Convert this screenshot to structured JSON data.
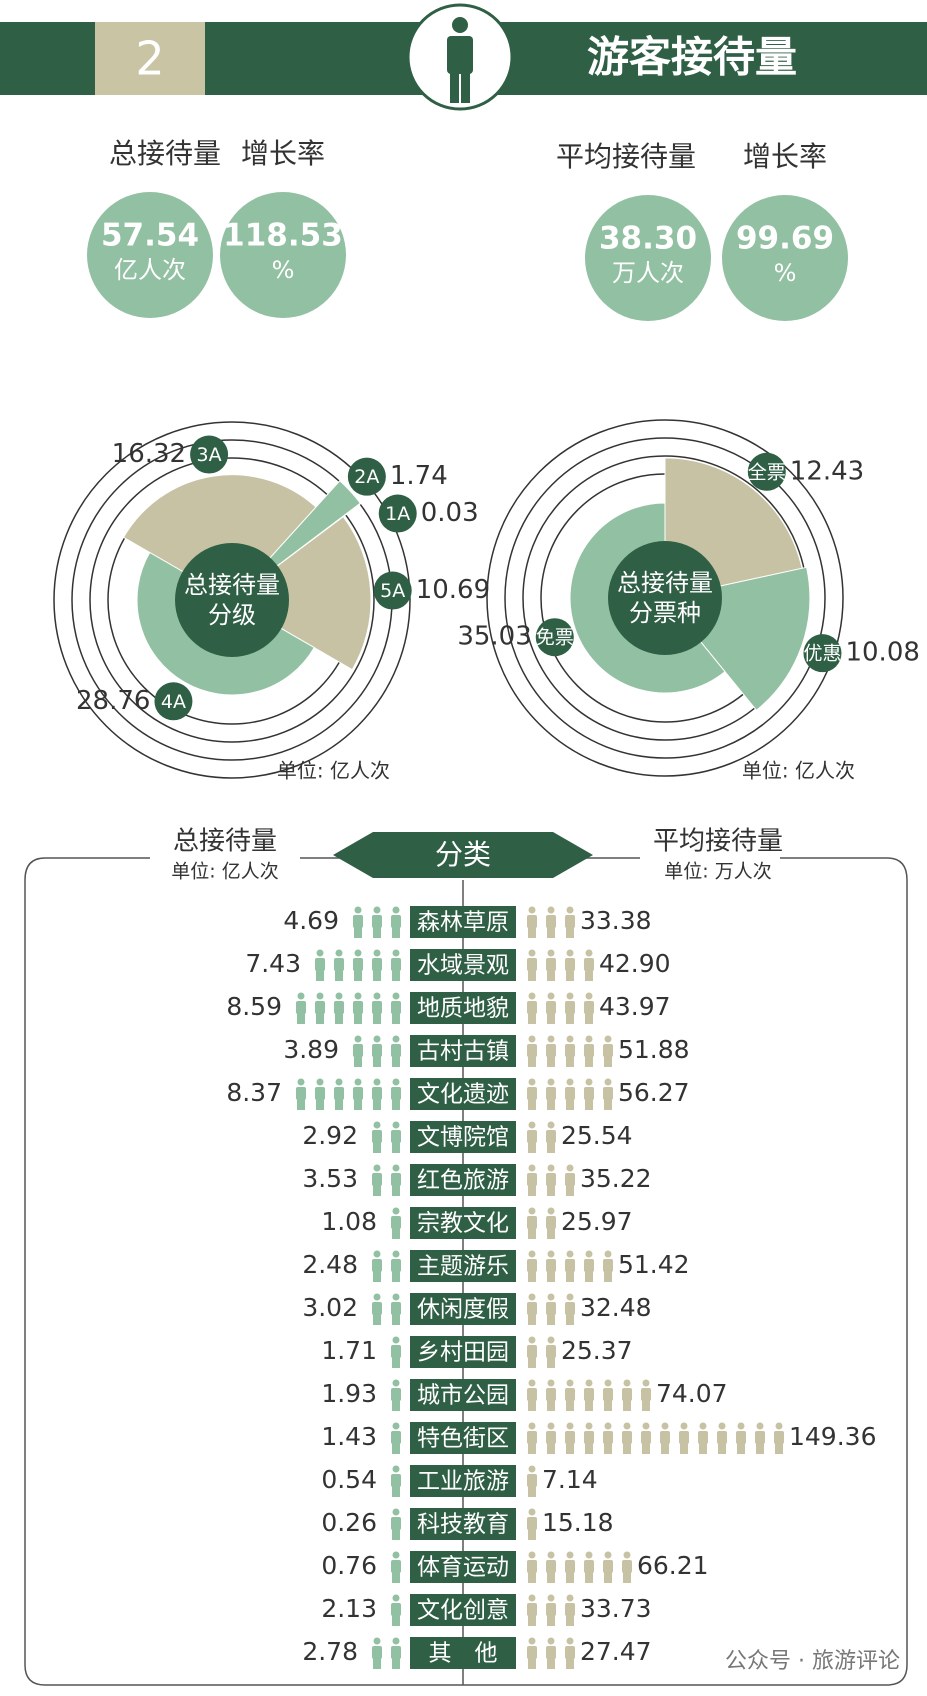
{
  "header": {
    "number": "2",
    "title": "游客接待量"
  },
  "stats": [
    {
      "label": "总接待量",
      "value": "57.54",
      "unit": "亿人次"
    },
    {
      "label": "增长率",
      "value": "118.53",
      "unit": "%"
    },
    {
      "label": "平均接待量",
      "value": "38.30",
      "unit": "万人次"
    },
    {
      "label": "增长率",
      "value": "99.69",
      "unit": "%"
    }
  ],
  "chart_data": [
    {
      "type": "polar",
      "title": [
        "总接待量",
        "分级"
      ],
      "unit": "单位: 亿人次",
      "categories": [
        "3A",
        "2A",
        "1A",
        "5A",
        "4A"
      ],
      "values": [
        16.32,
        1.74,
        0.03,
        10.69,
        28.76
      ],
      "colors": [
        "#c6c2a3",
        "#92c0a2",
        "#c6c2a3",
        "#c6c2a3",
        "#92c0a2"
      ]
    },
    {
      "type": "polar",
      "title": [
        "总接待量",
        "分票种"
      ],
      "unit": "单位: 亿人次",
      "categories": [
        "全票",
        "优惠",
        "免票"
      ],
      "values": [
        12.43,
        10.08,
        35.03
      ],
      "colors": [
        "#c6c2a3",
        "#92c0a2",
        "#92c0a2"
      ]
    },
    {
      "type": "pictogram",
      "title": "分类",
      "categories": [
        "森林草原",
        "水域景观",
        "地质地貌",
        "古村古镇",
        "文化遗迹",
        "文博院馆",
        "红色旅游",
        "宗教文化",
        "主题游乐",
        "休闲度假",
        "乡村田园",
        "城市公园",
        "特色街区",
        "工业旅游",
        "科技教育",
        "体育运动",
        "文化创意",
        "其　他"
      ],
      "series": [
        {
          "name": "总接待量",
          "unit": "单位: 亿人次",
          "color": "#92c0a2",
          "values": [
            4.69,
            7.43,
            8.59,
            3.89,
            8.37,
            2.92,
            3.53,
            1.08,
            2.48,
            3.02,
            1.71,
            1.93,
            1.43,
            0.54,
            0.26,
            0.76,
            2.13,
            2.78
          ]
        },
        {
          "name": "平均接待量",
          "unit": "单位: 万人次",
          "color": "#c6c2a3",
          "values": [
            33.38,
            42.9,
            43.97,
            51.88,
            56.27,
            25.54,
            35.22,
            25.97,
            51.42,
            32.48,
            25.37,
            74.07,
            149.36,
            7.14,
            15.18,
            66.21,
            33.73,
            27.47
          ],
          "value_labels": [
            "33.38",
            "42.90",
            "43.97",
            "51.88",
            "56.27",
            "25.54",
            "35.22",
            "25.97",
            "51.42",
            "32.48",
            "25.37",
            "74.07",
            "149.36",
            "7.14",
            "15.18",
            "66.21",
            "33.73",
            "27.47"
          ]
        }
      ]
    }
  ],
  "watermark": "公众号 · 旅游评论"
}
